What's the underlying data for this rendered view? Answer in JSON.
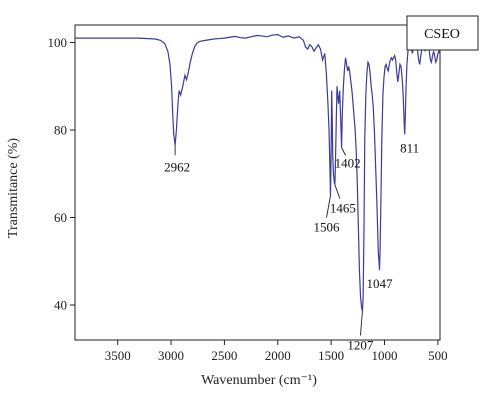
{
  "chart_data": {
    "type": "line",
    "title": "",
    "xlabel": "Wavenumber (cm⁻¹)",
    "ylabel": "Transmitance (%)",
    "xlim": [
      3900,
      480
    ],
    "ylim": [
      32,
      104
    ],
    "x_reversed": true,
    "xticks": [
      3500,
      3000,
      2500,
      2000,
      1500,
      1000,
      500
    ],
    "yticks": [
      40,
      60,
      80,
      100
    ],
    "grid": false,
    "legend": {
      "label": "CSEO",
      "position": "top-right"
    },
    "line_color": "#3b3b9c",
    "series": [
      {
        "name": "CSEO",
        "x": [
          3900,
          3700,
          3500,
          3300,
          3150,
          3100,
          3060,
          3030,
          3010,
          2995,
          2985,
          2975,
          2962,
          2950,
          2935,
          2925,
          2910,
          2890,
          2870,
          2855,
          2840,
          2820,
          2800,
          2780,
          2760,
          2740,
          2700,
          2650,
          2600,
          2550,
          2500,
          2450,
          2400,
          2350,
          2300,
          2250,
          2200,
          2150,
          2100,
          2050,
          2000,
          1950,
          1900,
          1850,
          1800,
          1760,
          1740,
          1720,
          1700,
          1680,
          1660,
          1640,
          1620,
          1600,
          1580,
          1560,
          1545,
          1530,
          1520,
          1512,
          1506,
          1500,
          1495,
          1490,
          1485,
          1478,
          1470,
          1465,
          1460,
          1452,
          1445,
          1438,
          1430,
          1420,
          1410,
          1402,
          1395,
          1385,
          1375,
          1365,
          1355,
          1345,
          1335,
          1325,
          1315,
          1305,
          1295,
          1285,
          1275,
          1265,
          1255,
          1245,
          1235,
          1225,
          1215,
          1207,
          1200,
          1192,
          1185,
          1175,
          1165,
          1155,
          1145,
          1135,
          1125,
          1115,
          1105,
          1095,
          1085,
          1075,
          1065,
          1058,
          1052,
          1047,
          1042,
          1035,
          1025,
          1015,
          1005,
          995,
          985,
          975,
          965,
          955,
          945,
          935,
          925,
          915,
          905,
          895,
          885,
          875,
          865,
          855,
          845,
          835,
          825,
          818,
          811,
          805,
          798,
          790,
          780,
          770,
          760,
          750,
          740,
          730,
          720,
          710,
          700,
          690,
          680,
          670,
          660,
          650,
          640,
          630,
          620,
          610,
          600,
          590,
          580,
          570,
          560,
          550,
          540,
          530,
          520,
          510,
          500,
          490,
          480
        ],
        "y": [
          101.0,
          101.0,
          101.0,
          101.0,
          100.8,
          100.5,
          99.8,
          98.0,
          95.0,
          90.0,
          84.0,
          79.0,
          76.5,
          80.0,
          86.0,
          89.0,
          88.0,
          90.0,
          92.5,
          91.5,
          93.0,
          95.5,
          97.5,
          99.0,
          99.8,
          100.2,
          100.4,
          100.6,
          100.8,
          100.9,
          101.0,
          101.2,
          101.4,
          101.1,
          101.0,
          101.3,
          101.6,
          101.5,
          101.3,
          101.7,
          101.8,
          101.2,
          101.5,
          101.0,
          101.3,
          100.5,
          99.0,
          98.5,
          99.5,
          99.0,
          98.0,
          98.8,
          99.5,
          98.5,
          96.0,
          97.5,
          93.0,
          86.0,
          80.0,
          72.0,
          65.0,
          75.0,
          89.0,
          83.0,
          74.0,
          70.0,
          68.0,
          67.5,
          72.0,
          82.0,
          90.0,
          88.0,
          86.0,
          89.0,
          82.0,
          76.0,
          84.0,
          90.0,
          94.0,
          96.5,
          95.0,
          93.5,
          94.5,
          93.0,
          91.0,
          89.0,
          86.0,
          83.0,
          80.0,
          75.0,
          68.0,
          58.0,
          48.0,
          42.0,
          39.5,
          38.5,
          42.0,
          58.0,
          78.0,
          88.0,
          93.0,
          95.5,
          95.0,
          93.0,
          90.0,
          88.0,
          85.0,
          80.0,
          73.0,
          66.0,
          58.0,
          52.0,
          50.0,
          48.0,
          52.0,
          62.0,
          78.0,
          88.0,
          92.0,
          94.5,
          95.0,
          94.0,
          93.5,
          95.0,
          96.0,
          96.5,
          96.0,
          96.5,
          97.0,
          96.0,
          93.0,
          91.0,
          93.0,
          95.0,
          94.5,
          92.0,
          88.0,
          83.0,
          79.0,
          83.0,
          90.0,
          95.0,
          98.0,
          99.5,
          100.0,
          99.0,
          97.5,
          98.5,
          99.5,
          100.0,
          99.5,
          98.0,
          96.0,
          95.0,
          97.0,
          98.5,
          99.5,
          99.0,
          98.0,
          99.0,
          99.5,
          99.0,
          98.0,
          96.0,
          95.5,
          97.0,
          98.0,
          97.0,
          95.5,
          96.0,
          97.5,
          98.0,
          97.5
        ]
      }
    ],
    "annotations": [
      {
        "text": "2962",
        "x": 2962,
        "y": 76.5
      },
      {
        "text": "1506",
        "x": 1506,
        "y": 65.0
      },
      {
        "text": "1465",
        "x": 1465,
        "y": 67.5
      },
      {
        "text": "1402",
        "x": 1402,
        "y": 76.0
      },
      {
        "text": "1207",
        "x": 1207,
        "y": 38.5
      },
      {
        "text": "1047",
        "x": 1047,
        "y": 48.0
      },
      {
        "text": "811",
        "x": 811,
        "y": 79.0
      }
    ]
  }
}
